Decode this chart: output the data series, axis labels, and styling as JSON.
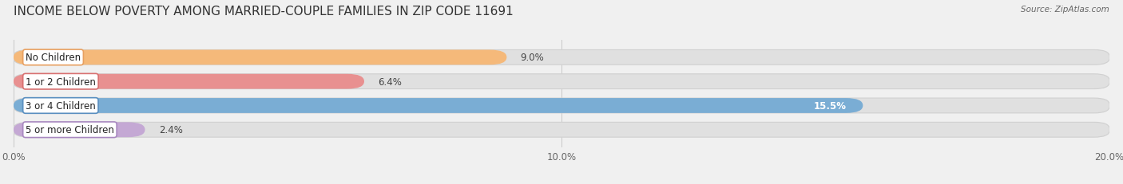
{
  "title": "INCOME BELOW POVERTY AMONG MARRIED-COUPLE FAMILIES IN ZIP CODE 11691",
  "source": "Source: ZipAtlas.com",
  "categories": [
    "No Children",
    "1 or 2 Children",
    "3 or 4 Children",
    "5 or more Children"
  ],
  "values": [
    9.0,
    6.4,
    15.5,
    2.4
  ],
  "bar_colors": [
    "#f5b97a",
    "#e89090",
    "#7aadd4",
    "#c4a8d4"
  ],
  "label_border_colors": [
    "#e8a060",
    "#d87070",
    "#5a8fc0",
    "#a888c0"
  ],
  "background_color": "#f0f0f0",
  "bar_bg_color": "#e0e0e0",
  "xlim": [
    0,
    20.0
  ],
  "xticks": [
    0.0,
    10.0,
    20.0
  ],
  "xtick_labels": [
    "0.0%",
    "10.0%",
    "20.0%"
  ],
  "value_labels": [
    "9.0%",
    "6.4%",
    "15.5%",
    "2.4%"
  ],
  "value_label_inside": [
    false,
    false,
    true,
    false
  ],
  "title_fontsize": 11,
  "label_fontsize": 8.5,
  "value_fontsize": 8.5,
  "tick_fontsize": 8.5,
  "bar_height": 0.62
}
